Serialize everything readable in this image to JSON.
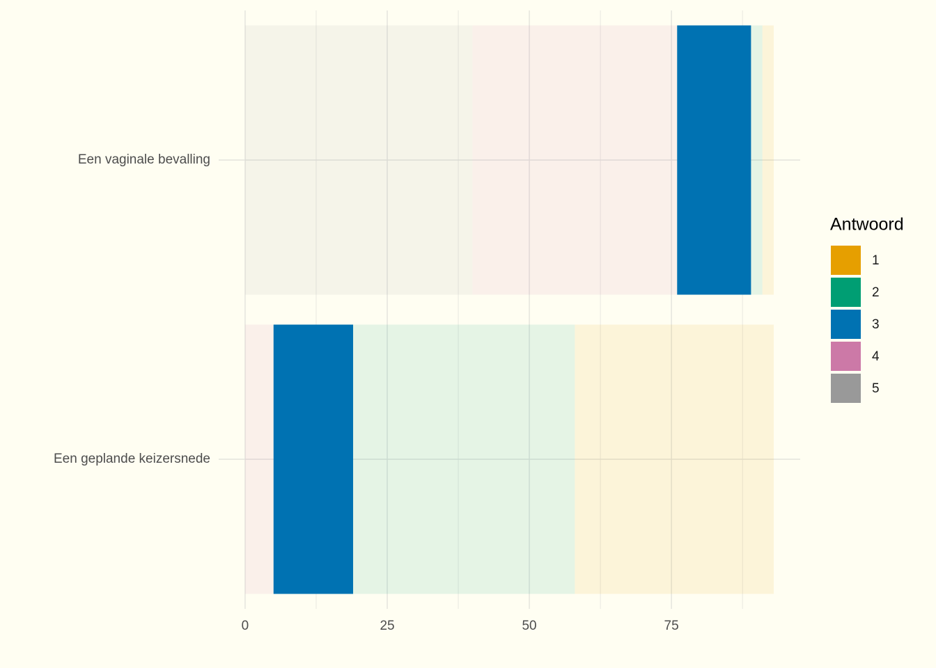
{
  "chart_data": {
    "type": "stacked_barh",
    "categories": [
      "Een vaginale bevalling",
      "Een geplande keizersnede"
    ],
    "series": [
      {
        "name": "1",
        "color": "#e69f00",
        "opacity": 0.1,
        "values": [
          2,
          35
        ]
      },
      {
        "name": "2",
        "color": "#009e73",
        "opacity": 0.1,
        "values": [
          2,
          39
        ]
      },
      {
        "name": "3",
        "color": "#0072b2",
        "opacity": 1,
        "values": [
          13,
          14
        ]
      },
      {
        "name": "4",
        "color": "#cc79a7",
        "opacity": 0.1,
        "values": [
          36,
          5
        ]
      },
      {
        "name": "5",
        "color": "#999999",
        "opacity": 0.1,
        "values": [
          40,
          0
        ]
      }
    ],
    "legend_title": "Antwoord",
    "xlim": [
      -4.65,
      97.65
    ],
    "xticks": [
      0,
      25,
      50,
      75
    ],
    "grid": true,
    "legend_position": "right"
  }
}
